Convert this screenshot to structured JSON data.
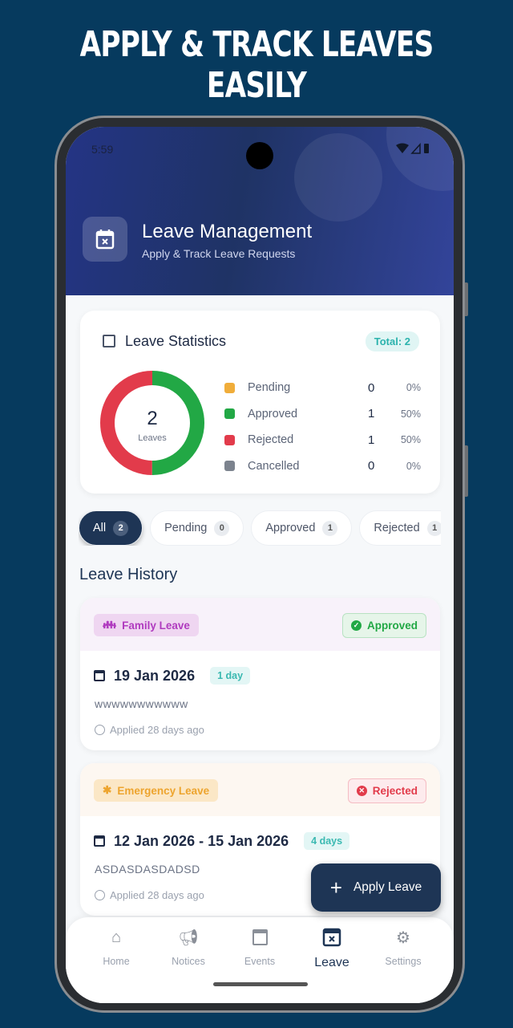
{
  "headline": "APPLY & TRACK LEAVES EASILY",
  "status": {
    "time": "5:59",
    "icons": "▾◢▮"
  },
  "header": {
    "title": "Leave Management",
    "subtitle": "Apply & Track Leave Requests",
    "icon": "calendar-x-icon"
  },
  "stats": {
    "title": "Leave Statistics",
    "total": "Total: 2",
    "center_value": "2",
    "center_label": "Leaves",
    "items": [
      {
        "label": "Pending",
        "count": "0",
        "pct": "0%",
        "color": "#f0ad3a",
        "value": 0
      },
      {
        "label": "Approved",
        "count": "1",
        "pct": "50%",
        "color": "#22a845",
        "value": 1
      },
      {
        "label": "Rejected",
        "count": "1",
        "pct": "50%",
        "color": "#e23b4b",
        "value": 1
      },
      {
        "label": "Cancelled",
        "count": "0",
        "pct": "0%",
        "color": "#7c838e",
        "value": 0
      }
    ]
  },
  "filters": [
    {
      "label": "All",
      "count": "2",
      "active": true
    },
    {
      "label": "Pending",
      "count": "0"
    },
    {
      "label": "Approved",
      "count": "1"
    },
    {
      "label": "Rejected",
      "count": "1"
    }
  ],
  "history_title": "Leave History",
  "leaves": [
    {
      "type": "Family Leave",
      "status": "Approved",
      "date": "19 Jan 2026",
      "days": "1 day",
      "reason": "wwwwwwwwwww",
      "applied": "Applied 28 days ago"
    },
    {
      "type": "Emergency Leave",
      "status": "Rejected",
      "date": "12 Jan 2026 - 15 Jan 2026",
      "days": "4 days",
      "reason": "ASDASDASDADSD",
      "applied": "Applied 28 days ago"
    }
  ],
  "fab": "Apply Leave",
  "nav": [
    {
      "label": "Home"
    },
    {
      "label": "Notices"
    },
    {
      "label": "Events"
    },
    {
      "label": "Leave",
      "active": true
    },
    {
      "label": "Settings"
    }
  ]
}
